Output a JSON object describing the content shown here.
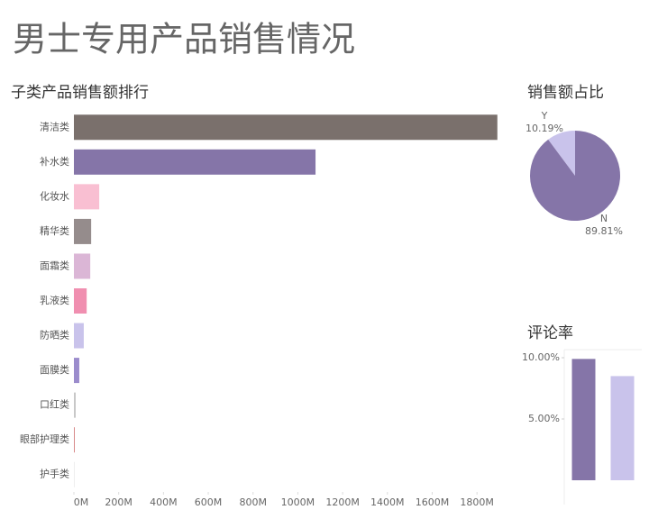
{
  "title": "男士专用产品销售情况",
  "chart_data": [
    {
      "type": "hbar",
      "title": "子类产品销售额排行",
      "categories": [
        "清洁类",
        "补水类",
        "化妆水",
        "精华类",
        "面霜类",
        "乳液类",
        "防晒类",
        "面膜类",
        "口红类",
        "眼部护理类",
        "护手类"
      ],
      "values": [
        1891,
        1079,
        113,
        77,
        73,
        57,
        44,
        24,
        8,
        4,
        1
      ],
      "colors": [
        "#7a706c",
        "#8575a8",
        "#f9bfd2",
        "#958c8c",
        "#dbb6d6",
        "#f08fb0",
        "#c9c3eb",
        "#9b8ccc",
        "#c8c8c8",
        "#d88a8a",
        "#dddddd"
      ],
      "xlim": [
        0,
        1900
      ],
      "xticks": [
        {
          "value": 0,
          "label": "0M"
        },
        {
          "value": 200,
          "label": "200M"
        },
        {
          "value": 400,
          "label": "400M"
        },
        {
          "value": 600,
          "label": "600M"
        },
        {
          "value": 800,
          "label": "800M"
        },
        {
          "value": 1000,
          "label": "1000M"
        },
        {
          "value": 1200,
          "label": "1200M"
        },
        {
          "value": 1400,
          "label": "1400M"
        },
        {
          "value": 1600,
          "label": "1600M"
        },
        {
          "value": 1800,
          "label": "1800M"
        }
      ]
    },
    {
      "type": "pie",
      "title": "销售额占比",
      "categories": [
        "Y",
        "N"
      ],
      "values": [
        10.19,
        89.81
      ],
      "value_labels": [
        "10.19%",
        "89.81%"
      ],
      "colors": [
        "#c9c3eb",
        "#8575a8"
      ]
    },
    {
      "type": "bar",
      "title": "评论率",
      "categories": [
        null,
        null
      ],
      "values": [
        9.9,
        8.5
      ],
      "colors": [
        "#8575a8",
        "#c9c3eb"
      ],
      "ylim": [
        0,
        10.6
      ],
      "yticks": [
        {
          "value": 10,
          "label": "10.00%"
        },
        {
          "value": 5,
          "label": "5.00%"
        }
      ]
    }
  ]
}
